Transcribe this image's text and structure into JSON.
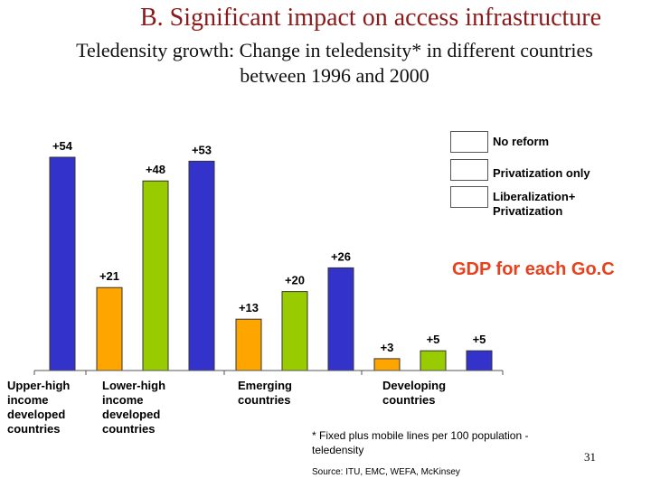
{
  "title": "B. Significant impact on access infrastructure",
  "subtitle_line1": "Teledensity growth: Change in teledensity* in different countries",
  "subtitle_line2": "between 1996 and 2000",
  "annotation": "GDP for each Go.C",
  "footnote": "* Fixed plus mobile lines per 100 population - teledensity",
  "source": "Source: ITU, EMC, WEFA, McKinsey",
  "page_number": "31",
  "chart_data": {
    "type": "bar",
    "categories": [
      "Upper-high income developed countries",
      "Lower-high income developed countries",
      "Emerging countries",
      "Developing countries"
    ],
    "category_lines": [
      [
        "Upper-high",
        "income",
        "developed",
        "countries"
      ],
      [
        "Lower-high",
        "income",
        "developed",
        "countries"
      ],
      [
        "Emerging",
        "countries"
      ],
      [
        "Developing",
        "countries"
      ]
    ],
    "series": [
      {
        "name": "No reform",
        "color": "#ffa500",
        "values": [
          null,
          21,
          13,
          3
        ]
      },
      {
        "name": "Privatization only",
        "color": "#99cc00",
        "values": [
          null,
          48,
          20,
          5
        ]
      },
      {
        "name": "Liberalization+ Privatization",
        "color": "#3333cc",
        "values": [
          54,
          53,
          26,
          5
        ]
      }
    ],
    "data_labels": [
      "+54",
      "+21",
      "+48",
      "+53",
      "+13",
      "+20",
      "+26",
      "+3",
      "+5",
      "+5"
    ],
    "legend": {
      "placement": "top-right",
      "entries": [
        {
          "label": "No reform",
          "color": "#ffa500"
        },
        {
          "label": "Privatization only",
          "color": "#99cc00"
        },
        {
          "label_line1": "Liberalization+",
          "label_line2": "Privatization",
          "color": "#3333cc"
        }
      ]
    },
    "ylim": [
      0,
      60
    ],
    "grid": false
  }
}
